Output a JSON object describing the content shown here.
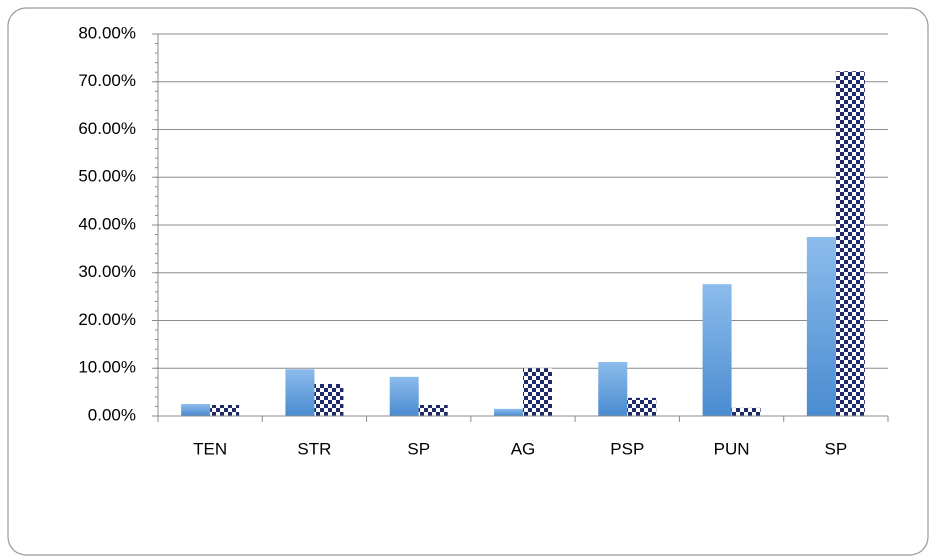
{
  "chart_data": {
    "type": "bar",
    "categories": [
      "TEN",
      "STR",
      "SP",
      "AG",
      "PSP",
      "PUN",
      "SP"
    ],
    "series": [
      {
        "color": "#5b9bd5",
        "values": [
          2.5,
          9.8,
          8.2,
          1.5,
          11.3,
          27.6,
          37.5
        ]
      },
      {
        "color": "#1f2a6b",
        "pattern": "checker",
        "values": [
          2.3,
          6.7,
          2.3,
          10.0,
          3.8,
          1.7,
          72.2
        ]
      }
    ],
    "ylim": [
      0,
      80
    ],
    "yticks": [
      {
        "value": 0,
        "label": "0.00%"
      },
      {
        "value": 10,
        "label": "10.00%"
      },
      {
        "value": 20,
        "label": "20.00%"
      },
      {
        "value": 30,
        "label": "30.00%"
      },
      {
        "value": 40,
        "label": "40.00%"
      },
      {
        "value": 50,
        "label": "50.00%"
      },
      {
        "value": 60,
        "label": "60.00%"
      },
      {
        "value": 70,
        "label": "70.00%"
      },
      {
        "value": 80,
        "label": "80.00%"
      }
    ],
    "grid": true
  }
}
